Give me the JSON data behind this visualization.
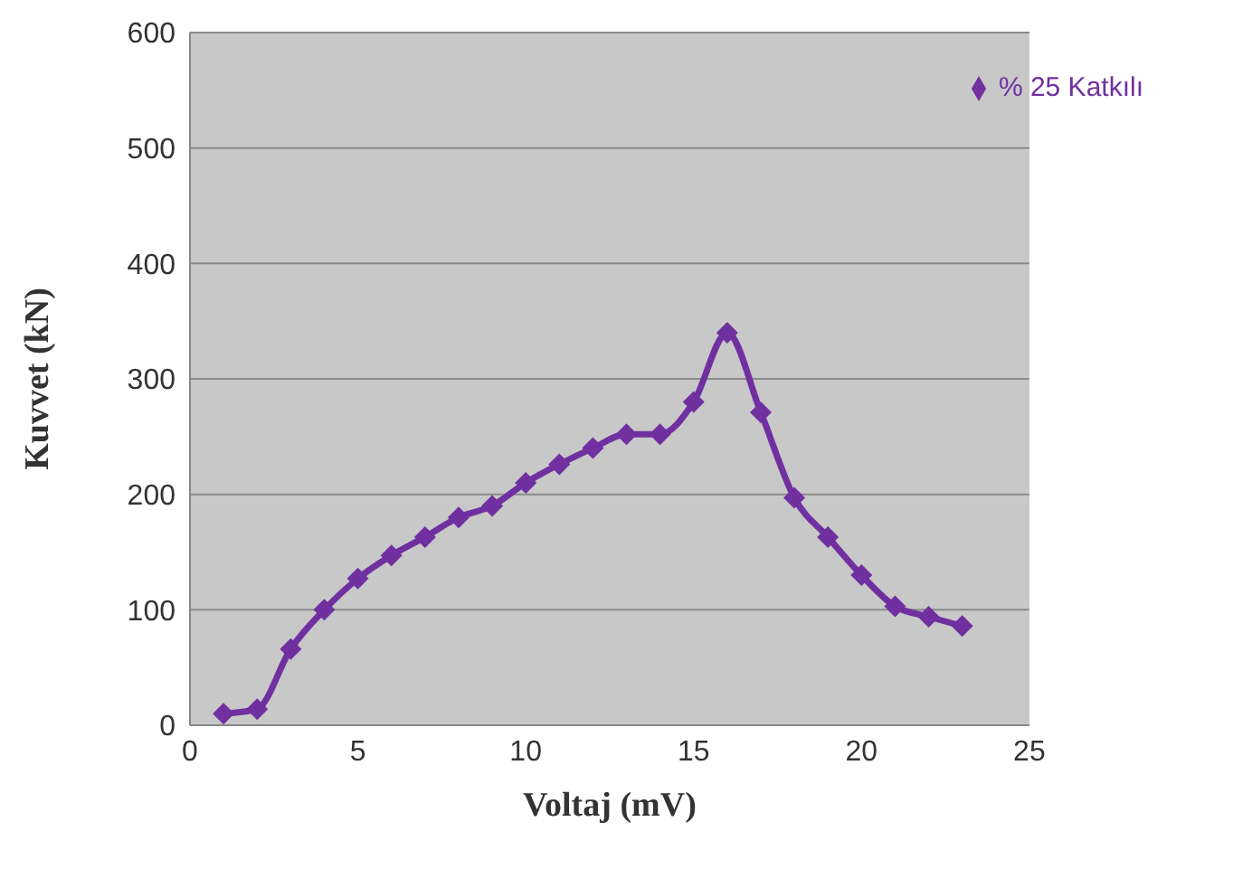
{
  "chart_data": {
    "type": "line",
    "xlabel": "Voltaj (mV)",
    "ylabel": "Kuvvet (kN)",
    "x": [
      1,
      2,
      3,
      4,
      5,
      6,
      7,
      8,
      9,
      10,
      11,
      12,
      13,
      14,
      15,
      16,
      17,
      18,
      19,
      20,
      21,
      22,
      23
    ],
    "series": [
      {
        "name": "% 25 Katkılı",
        "color": "#7030a0",
        "values": [
          10,
          14,
          66,
          100,
          127,
          147,
          163,
          180,
          190,
          210,
          226,
          240,
          252,
          252,
          280,
          340,
          271,
          197,
          163,
          130,
          103,
          94,
          86
        ]
      }
    ],
    "xlim": [
      0,
      25
    ],
    "xticks": [
      0,
      5,
      10,
      15,
      20,
      25
    ],
    "ylim": [
      0,
      600
    ],
    "yticks": [
      0,
      100,
      200,
      300,
      400,
      500,
      600
    ],
    "grid": "y",
    "legend": "top right",
    "marker": "diamond",
    "line_style": "solid"
  }
}
